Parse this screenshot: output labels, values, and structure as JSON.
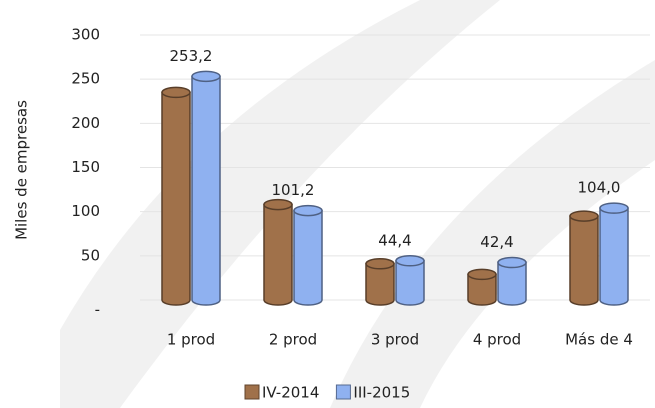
{
  "chart_data": {
    "type": "bar",
    "y_label": "Miles de empresas",
    "categories": [
      "1 prod",
      "2 prod",
      "3 prod",
      "4 prod",
      "Más de 4"
    ],
    "series": [
      {
        "name": "IV-2014",
        "color": "#a0714a",
        "values": [
          235,
          108,
          41,
          29,
          95
        ]
      },
      {
        "name": "III-2015",
        "color": "#8fb1f0",
        "values": [
          253.2,
          101.2,
          44.4,
          42.4,
          104.0
        ],
        "value_labels": [
          "253,2",
          "101,2",
          "44,4",
          "42,4",
          "104,0"
        ]
      }
    ],
    "ylim": [
      0,
      300
    ],
    "yticks": [
      {
        "value": 0,
        "label": "-"
      },
      50,
      100,
      150,
      200,
      250,
      300
    ],
    "grid": true
  }
}
